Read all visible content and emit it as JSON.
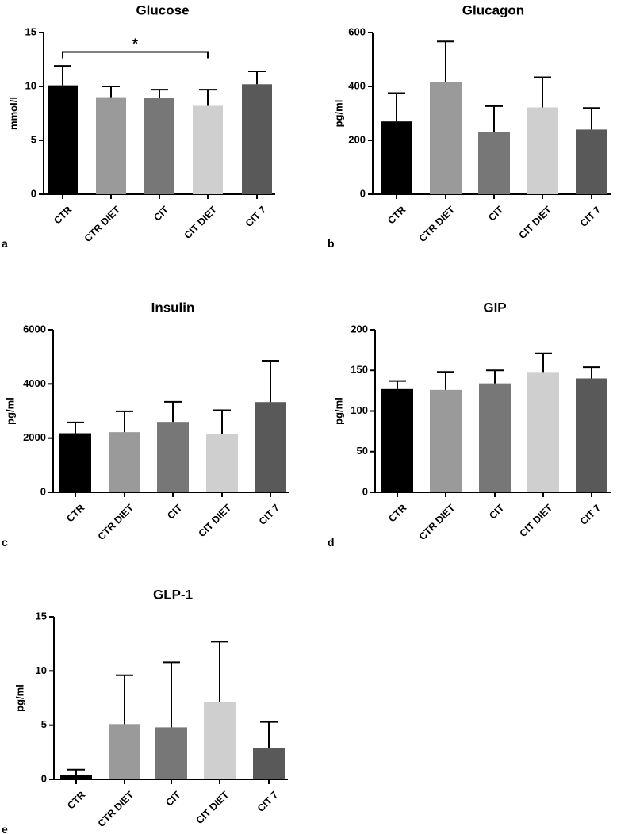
{
  "chart_data": [
    {
      "panel": "a",
      "type": "bar",
      "title": "Glucose",
      "xlabel": "",
      "ylabel": "mmol/l",
      "ylim": [
        0,
        15
      ],
      "yticks": [
        0,
        5,
        10,
        15
      ],
      "categories": [
        "CTR",
        "CTR DIET",
        "CIT",
        "CIT DIET",
        "CIT 7"
      ],
      "values": [
        10.1,
        9.0,
        8.9,
        8.2,
        10.2
      ],
      "errors": [
        1.8,
        1.0,
        0.8,
        1.5,
        1.2
      ],
      "colors": [
        "#000000",
        "#9a9a9a",
        "#777777",
        "#cfcfcf",
        "#595959"
      ],
      "annotations": [
        {
          "from": "CTR",
          "to": "CIT DIET",
          "text": "*",
          "y": 13.2
        }
      ]
    },
    {
      "panel": "b",
      "type": "bar",
      "title": "Glucagon",
      "xlabel": "",
      "ylabel": "pg/ml",
      "ylim": [
        0,
        600
      ],
      "yticks": [
        0,
        200,
        400,
        600
      ],
      "categories": [
        "CTR",
        "CTR DIET",
        "CIT",
        "CIT DIET",
        "CIT 7"
      ],
      "values": [
        270,
        415,
        232,
        322,
        240
      ],
      "errors": [
        105,
        152,
        95,
        112,
        80
      ],
      "colors": [
        "#000000",
        "#9a9a9a",
        "#777777",
        "#cfcfcf",
        "#595959"
      ]
    },
    {
      "panel": "c",
      "type": "bar",
      "title": "Insulin",
      "xlabel": "",
      "ylabel": "pg/ml",
      "ylim": [
        0,
        6000
      ],
      "yticks": [
        0,
        2000,
        4000,
        6000
      ],
      "categories": [
        "CTR",
        "CTR DIET",
        "CIT",
        "CIT DIET",
        "CIT 7"
      ],
      "values": [
        2180,
        2220,
        2600,
        2160,
        3330
      ],
      "errors": [
        400,
        770,
        740,
        870,
        1530
      ],
      "colors": [
        "#000000",
        "#9a9a9a",
        "#777777",
        "#cfcfcf",
        "#595959"
      ]
    },
    {
      "panel": "d",
      "type": "bar",
      "title": "GIP",
      "xlabel": "",
      "ylabel": "pg/ml",
      "ylim": [
        0,
        200
      ],
      "yticks": [
        0,
        50,
        100,
        150,
        200
      ],
      "categories": [
        "CTR",
        "CTR DIET",
        "CIT",
        "CIT DIET",
        "CIT 7"
      ],
      "values": [
        127,
        126,
        134,
        148,
        140
      ],
      "errors": [
        10,
        22,
        16,
        23,
        14
      ],
      "colors": [
        "#000000",
        "#9a9a9a",
        "#777777",
        "#cfcfcf",
        "#595959"
      ]
    },
    {
      "panel": "e",
      "type": "bar",
      "title": "GLP-1",
      "xlabel": "",
      "ylabel": "pg/ml",
      "ylim": [
        0,
        15
      ],
      "yticks": [
        0,
        5,
        10,
        15
      ],
      "categories": [
        "CTR",
        "CTR DIET",
        "CIT",
        "CIT DIET",
        "CIT 7"
      ],
      "values": [
        0.4,
        5.1,
        4.8,
        7.1,
        2.9
      ],
      "errors": [
        0.5,
        4.5,
        6.0,
        5.6,
        2.4
      ],
      "colors": [
        "#000000",
        "#9a9a9a",
        "#777777",
        "#cfcfcf",
        "#595959"
      ]
    }
  ]
}
